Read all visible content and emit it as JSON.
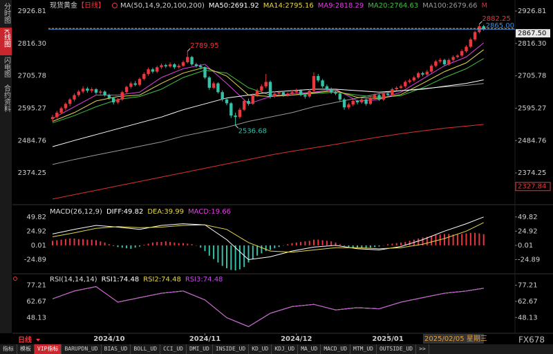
{
  "header": {
    "symbol": "现货黄金",
    "period": "【日线】",
    "ma_params": "MA(50,14,9,20,100,200)"
  },
  "side_tabs": [
    "分时图",
    "K线图",
    "闪电图",
    "合约资料"
  ],
  "chart_data": [
    {
      "type": "candlestick",
      "ylim": [
        2280,
        2941
      ],
      "yticks": [
        2926.81,
        {
          "value": 2816.3,
          "label": "2816.30"
        },
        2705.78,
        2595.27,
        2484.76,
        2374.25
      ],
      "xlim": [
        -1,
        100
      ],
      "xticks": [
        {
          "value": 13,
          "label": "2024/10"
        },
        {
          "value": 35,
          "label": "2024/11"
        },
        {
          "value": 56,
          "label": "2024/12"
        },
        {
          "value": 77,
          "label": "2025/01"
        }
      ],
      "up_color": "#e8383d",
      "down_color": "#36c0a8",
      "ohlc": [
        [
          2558,
          2572,
          2550,
          2565
        ],
        [
          2565,
          2586,
          2560,
          2580
        ],
        [
          2580,
          2600,
          2575,
          2595
        ],
        [
          2595,
          2615,
          2588,
          2610
        ],
        [
          2610,
          2630,
          2602,
          2625
        ],
        [
          2625,
          2646,
          2618,
          2640
        ],
        [
          2640,
          2658,
          2634,
          2652
        ],
        [
          2652,
          2670,
          2646,
          2662
        ],
        [
          2662,
          2668,
          2648,
          2655
        ],
        [
          2655,
          2666,
          2648,
          2660
        ],
        [
          2660,
          2664,
          2642,
          2648
        ],
        [
          2648,
          2658,
          2642,
          2652
        ],
        [
          2652,
          2656,
          2635,
          2640
        ],
        [
          2640,
          2645,
          2624,
          2630
        ],
        [
          2630,
          2634,
          2608,
          2615
        ],
        [
          2615,
          2630,
          2610,
          2625
        ],
        [
          2625,
          2655,
          2620,
          2650
        ],
        [
          2650,
          2672,
          2645,
          2668
        ],
        [
          2668,
          2686,
          2662,
          2680
        ],
        [
          2680,
          2688,
          2670,
          2675
        ],
        [
          2675,
          2700,
          2670,
          2695
        ],
        [
          2695,
          2718,
          2690,
          2712
        ],
        [
          2712,
          2734,
          2706,
          2728
        ],
        [
          2728,
          2733,
          2714,
          2720
        ],
        [
          2720,
          2740,
          2715,
          2735
        ],
        [
          2735,
          2748,
          2729,
          2742
        ],
        [
          2742,
          2747,
          2732,
          2738
        ],
        [
          2738,
          2752,
          2733,
          2745
        ],
        [
          2745,
          2749,
          2729,
          2735
        ],
        [
          2735,
          2746,
          2730,
          2740
        ],
        [
          2740,
          2758,
          2736,
          2752
        ],
        [
          2752,
          2789.95,
          2748,
          2770
        ],
        [
          2770,
          2774,
          2740,
          2745
        ],
        [
          2745,
          2750,
          2734,
          2740
        ],
        [
          2740,
          2746,
          2728,
          2735
        ],
        [
          2735,
          2738,
          2695,
          2700
        ],
        [
          2700,
          2705,
          2658,
          2665
        ],
        [
          2665,
          2686,
          2660,
          2680
        ],
        [
          2680,
          2684,
          2645,
          2650
        ],
        [
          2650,
          2656,
          2618,
          2625
        ],
        [
          2625,
          2632,
          2605,
          2612
        ],
        [
          2612,
          2616,
          2562,
          2570
        ],
        [
          2570,
          2580,
          2536.68,
          2565
        ],
        [
          2565,
          2596,
          2560,
          2590
        ],
        [
          2590,
          2626,
          2585,
          2620
        ],
        [
          2620,
          2628,
          2604,
          2610
        ],
        [
          2610,
          2646,
          2606,
          2640
        ],
        [
          2640,
          2662,
          2634,
          2655
        ],
        [
          2655,
          2676,
          2650,
          2670
        ],
        [
          2670,
          2712,
          2664,
          2685
        ],
        [
          2685,
          2690,
          2628,
          2635
        ],
        [
          2635,
          2652,
          2630,
          2645
        ],
        [
          2645,
          2656,
          2640,
          2650
        ],
        [
          2650,
          2654,
          2634,
          2640
        ],
        [
          2640,
          2650,
          2635,
          2645
        ],
        [
          2645,
          2656,
          2640,
          2650
        ],
        [
          2650,
          2662,
          2645,
          2655
        ],
        [
          2655,
          2660,
          2636,
          2640
        ],
        [
          2640,
          2645,
          2628,
          2635
        ],
        [
          2635,
          2660,
          2630,
          2655
        ],
        [
          2655,
          2718,
          2650,
          2705
        ],
        [
          2705,
          2712,
          2684,
          2690
        ],
        [
          2690,
          2695,
          2664,
          2670
        ],
        [
          2670,
          2676,
          2654,
          2660
        ],
        [
          2660,
          2666,
          2644,
          2650
        ],
        [
          2650,
          2656,
          2640,
          2645
        ],
        [
          2645,
          2650,
          2618,
          2625
        ],
        [
          2625,
          2630,
          2590,
          2598
        ],
        [
          2598,
          2614,
          2592,
          2608
        ],
        [
          2608,
          2626,
          2602,
          2620
        ],
        [
          2620,
          2624,
          2608,
          2615
        ],
        [
          2615,
          2630,
          2610,
          2625
        ],
        [
          2625,
          2628,
          2604,
          2610
        ],
        [
          2610,
          2636,
          2606,
          2630
        ],
        [
          2630,
          2646,
          2625,
          2640
        ],
        [
          2640,
          2644,
          2620,
          2625
        ],
        [
          2625,
          2650,
          2620,
          2645
        ],
        [
          2645,
          2650,
          2636,
          2640
        ],
        [
          2640,
          2665,
          2636,
          2660
        ],
        [
          2660,
          2670,
          2655,
          2665
        ],
        [
          2665,
          2676,
          2660,
          2670
        ],
        [
          2670,
          2690,
          2665,
          2685
        ],
        [
          2685,
          2696,
          2680,
          2690
        ],
        [
          2690,
          2706,
          2685,
          2700
        ],
        [
          2700,
          2720,
          2695,
          2715
        ],
        [
          2715,
          2720,
          2704,
          2710
        ],
        [
          2710,
          2726,
          2705,
          2720
        ],
        [
          2720,
          2746,
          2715,
          2740
        ],
        [
          2740,
          2760,
          2735,
          2755
        ],
        [
          2755,
          2766,
          2750,
          2760
        ],
        [
          2760,
          2764,
          2740,
          2745
        ],
        [
          2745,
          2765,
          2740,
          2760
        ],
        [
          2760,
          2776,
          2755,
          2770
        ],
        [
          2770,
          2780,
          2765,
          2775
        ],
        [
          2775,
          2796,
          2770,
          2790
        ],
        [
          2790,
          2810,
          2785,
          2805
        ],
        [
          2805,
          2836,
          2800,
          2830
        ],
        [
          2830,
          2860,
          2825,
          2855
        ],
        [
          2855,
          2882.25,
          2850,
          2875
        ],
        [
          2875,
          2880,
          2860,
          2865
        ]
      ],
      "ma_x": [
        0,
        5,
        10,
        15,
        20,
        25,
        30,
        35,
        40,
        45,
        50,
        55,
        60,
        65,
        70,
        75,
        80,
        85,
        90,
        95,
        99
      ],
      "series": [
        {
          "name": "MA50:2691.92",
          "color": "#ffffff",
          "values": [
            2464,
            2485,
            2505,
            2525,
            2545,
            2565,
            2590,
            2610,
            2630,
            2640,
            2650,
            2655,
            2660,
            2660,
            2655,
            2650,
            2655,
            2660,
            2670,
            2680,
            2691.92
          ]
        },
        {
          "name": "MA14:2795.16",
          "color": "#e6d84a",
          "values": [
            2550,
            2580,
            2620,
            2635,
            2640,
            2680,
            2715,
            2735,
            2705,
            2640,
            2635,
            2640,
            2648,
            2655,
            2632,
            2628,
            2642,
            2680,
            2720,
            2750,
            2795.16
          ]
        },
        {
          "name": "MA9:2818.29",
          "color": "#e040e0",
          "values": [
            2560,
            2600,
            2640,
            2640,
            2650,
            2700,
            2730,
            2745,
            2680,
            2610,
            2635,
            2645,
            2650,
            2660,
            2620,
            2625,
            2650,
            2695,
            2740,
            2770,
            2818.29
          ]
        },
        {
          "name": "MA20:2764.63",
          "color": "#40c040",
          "values": [
            2545,
            2570,
            2600,
            2625,
            2635,
            2660,
            2700,
            2725,
            2715,
            2665,
            2640,
            2640,
            2645,
            2650,
            2640,
            2632,
            2638,
            2665,
            2700,
            2730,
            2764.63
          ]
        },
        {
          "name": "MA100:2679.66",
          "color": "#9a9a9a",
          "values": [
            2403,
            2420,
            2435,
            2450,
            2465,
            2480,
            2500,
            2515,
            2530,
            2550,
            2565,
            2580,
            2600,
            2615,
            2630,
            2645,
            2655,
            2662,
            2668,
            2673,
            2679.66
          ]
        },
        {
          "name": "M",
          "color": "#e03030",
          "values": [
            2285,
            2300,
            2315,
            2330,
            2345,
            2360,
            2375,
            2390,
            2405,
            2420,
            2435,
            2448,
            2460,
            2472,
            2485,
            2497,
            2508,
            2518,
            2527,
            2534,
            2540
          ]
        }
      ],
      "annotations": [
        {
          "x": 31,
          "value": 2789.95
        },
        {
          "x": 42,
          "value": 2536.68
        },
        {
          "x": 98,
          "value": 2882.25
        }
      ],
      "price_lines": [
        {
          "value": 2867.5,
          "label": "2867.50",
          "color": "#e0a040"
        },
        {
          "value": 2865,
          "label": "2865.00",
          "color": "#3a8ee6"
        }
      ],
      "range_low": 2327.84
    },
    {
      "type": "macd",
      "title": "MACD(26,12,9)",
      "ylim": [
        -45,
        69
      ],
      "yticks": [
        49.82,
        24.92,
        0.01,
        -24.89
      ],
      "x": [
        0,
        5,
        10,
        15,
        20,
        25,
        30,
        35,
        40,
        45,
        50,
        55,
        60,
        65,
        70,
        75,
        80,
        85,
        90,
        95,
        99
      ],
      "series": [
        {
          "name": "DIFF:49.82",
          "color": "#ffffff",
          "values": [
            20,
            28,
            35,
            32,
            28,
            35,
            38,
            36,
            10,
            -25,
            -20,
            -10,
            -3,
            0,
            -6,
            -8,
            -2,
            10,
            25,
            38,
            49.82
          ]
        },
        {
          "name": "DEA:39.99",
          "color": "#e6d84a",
          "values": [
            15,
            22,
            30,
            33,
            31,
            32,
            35,
            36,
            28,
            5,
            -10,
            -12,
            -8,
            -4,
            -4,
            -6,
            -4,
            2,
            12,
            25,
            39.99
          ]
        }
      ],
      "histogram": {
        "name": "MACD:19.66",
        "color": "#e040e0",
        "up_color": "#e8383d",
        "down_color": "#36c0a8",
        "values": [
          8,
          9,
          10,
          11,
          12,
          12,
          11,
          11,
          10,
          10,
          9,
          7,
          5,
          2,
          -1,
          -3,
          -4,
          -5,
          -6,
          -4,
          -2,
          1,
          3,
          5,
          6,
          6,
          7,
          6,
          5,
          4,
          4,
          3,
          2,
          0,
          -4,
          -10,
          -18,
          -24,
          -30,
          -36,
          -40,
          -43,
          -44,
          -42,
          -38,
          -30,
          -24,
          -18,
          -14,
          -10,
          -8,
          -5,
          -3,
          0,
          2,
          4,
          5,
          6,
          7,
          8,
          10,
          10,
          9,
          8,
          7,
          5,
          2,
          -1,
          -3,
          -4,
          -4,
          -4,
          -5,
          -4,
          -3,
          -2,
          0,
          2,
          3,
          4,
          5,
          6,
          8,
          10,
          12,
          14,
          15,
          16,
          18,
          19,
          20,
          20,
          19,
          19,
          20,
          21,
          22,
          22,
          21,
          19.66
        ]
      }
    },
    {
      "type": "line",
      "title": "RSI(14,14,14)",
      "ylim": [
        34,
        85
      ],
      "yticks": [
        77.21,
        62.67,
        48.13
      ],
      "x": [
        0,
        5,
        10,
        15,
        20,
        25,
        30,
        35,
        40,
        45,
        50,
        55,
        60,
        65,
        70,
        75,
        80,
        85,
        90,
        95,
        99
      ],
      "series": [
        {
          "name": "RSI1:74.48",
          "color": "#ffffff",
          "values": [
            65,
            72,
            76,
            62,
            66,
            70,
            72,
            64,
            48,
            40,
            52,
            58,
            60,
            55,
            57,
            56,
            62,
            66,
            70,
            72,
            74.48
          ]
        },
        {
          "name": "RSI2:74.48",
          "color": "#e6d84a",
          "values": [
            65,
            72,
            76,
            62,
            66,
            70,
            72,
            64,
            48,
            40,
            52,
            58,
            60,
            55,
            57,
            56,
            62,
            66,
            70,
            72,
            74.48
          ]
        },
        {
          "name": "RSI3:74.48",
          "color": "#c050e0",
          "values": [
            65,
            72,
            76,
            62,
            66,
            70,
            72,
            64,
            48,
            40,
            52,
            58,
            60,
            55,
            57,
            56,
            62,
            66,
            70,
            72,
            74.48
          ]
        }
      ]
    }
  ],
  "cursor_date": "2025/02/05 星期三",
  "bottom": {
    "period": "日线",
    "brand": "FX678",
    "tabs": [
      "指标",
      "模板",
      "VIP指标",
      "BARUPDN_UD",
      "BIAS_UD",
      "BOLL_UD",
      "CCI_UD",
      "DMI_UD",
      "INSIDE_UD",
      "KD_UD",
      "KDJ_UD",
      "MA_UD",
      "MACD_UD",
      "MTM_UD",
      "OUTSIDE_UD",
      ">>"
    ]
  }
}
